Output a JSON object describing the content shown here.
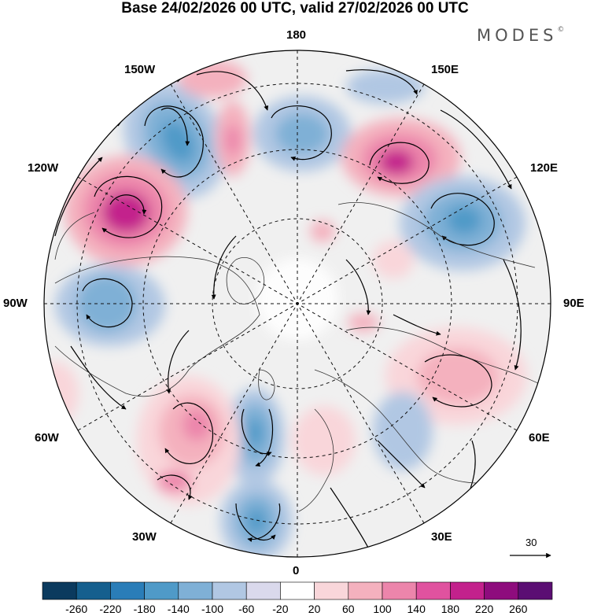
{
  "title": "Base 24/02/2026 00 UTC, valid 27/02/2026 00 UTC",
  "brand": "MODES",
  "brand_mark": "©",
  "map": {
    "projection": "polar stereographic (north pole)",
    "longitude_labels": {
      "top": "180",
      "upper_left": "150W",
      "upper_right": "150E",
      "left_upper": "120W",
      "right_upper": "120E",
      "left": "90W",
      "right": "90E",
      "left_lower": "60W",
      "right_lower": "60E",
      "lower_left": "30W",
      "lower_right": "30E",
      "bottom": "0"
    },
    "reference_vector_label": "30"
  },
  "colorbar": {
    "labels": [
      "-260",
      "-220",
      "-180",
      "-140",
      "-100",
      "-60",
      "-20",
      "20",
      "60",
      "100",
      "140",
      "180",
      "220",
      "260"
    ],
    "colors": [
      "#0b3a5e",
      "#155f8e",
      "#2a7db8",
      "#4f9ac8",
      "#7fb0d6",
      "#b1c7e3",
      "#dad9ec",
      "#ffffff",
      "#f9d6da",
      "#f4b1be",
      "#ec85ab",
      "#e0529f",
      "#c3218c",
      "#8e0c7d",
      "#5b0e73"
    ]
  },
  "anomaly_centers": [
    {
      "name": "low-150w",
      "value": -200
    },
    {
      "name": "low-180",
      "value": -160
    },
    {
      "name": "high-120w",
      "value": 220
    },
    {
      "name": "high-150e",
      "value": 220
    },
    {
      "name": "low-120e",
      "value": -180
    },
    {
      "name": "low-90w",
      "value": -160
    },
    {
      "name": "low-atlantic",
      "value": -180
    },
    {
      "name": "low-europe",
      "value": -180
    },
    {
      "name": "high-atlantic",
      "value": 160
    },
    {
      "name": "high-russia",
      "value": 100
    }
  ]
}
